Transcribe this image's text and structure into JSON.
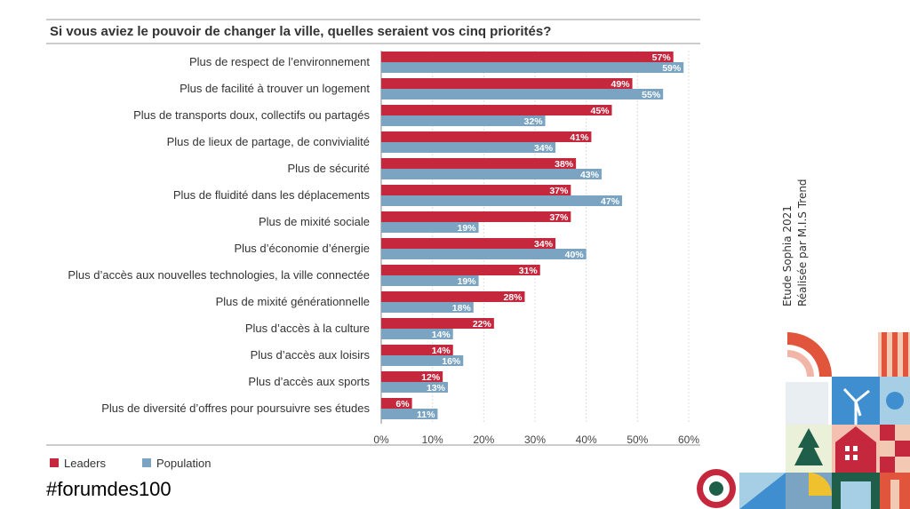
{
  "chart_data": {
    "type": "bar",
    "orientation": "horizontal",
    "title": "Si vous aviez le pouvoir de changer la ville, quelles seraient vos cinq priorités?",
    "categories": [
      "Plus de respect de l’environnement",
      "Plus de facilité à trouver un logement",
      "Plus de transports doux, collectifs ou partagés",
      "Plus de lieux de partage, de convivialité",
      "Plus de sécurité",
      "Plus de fluidité dans les déplacements",
      "Plus de mixité sociale",
      "Plus d’économie d’énergie",
      "Plus d’accès aux nouvelles technologies, la ville connectée",
      "Plus de mixité générationnelle",
      "Plus d’accès à la culture",
      "Plus d’accès aux loisirs",
      "Plus d’accès aux sports",
      "Plus de diversité d’offres pour poursuivre ses études"
    ],
    "series": [
      {
        "name": "Leaders",
        "color": "#c5283d",
        "values": [
          57,
          49,
          45,
          41,
          38,
          37,
          37,
          34,
          31,
          28,
          22,
          14,
          12,
          6
        ]
      },
      {
        "name": "Population",
        "color": "#7aa4c1",
        "values": [
          59,
          55,
          32,
          34,
          43,
          47,
          19,
          40,
          19,
          18,
          14,
          16,
          13,
          11
        ]
      }
    ],
    "xlim": [
      0,
      60
    ],
    "xticks": [
      "0%",
      "10%",
      "20%",
      "30%",
      "40%",
      "50%",
      "60%"
    ],
    "grid": true,
    "legend_position": "bottom-left",
    "value_suffix": "%"
  },
  "footer": {
    "hashtag": "#forumdes100",
    "source_line1": "Etude Sophia 2021",
    "source_line2": "Réalisée par M.I.S Trend"
  }
}
